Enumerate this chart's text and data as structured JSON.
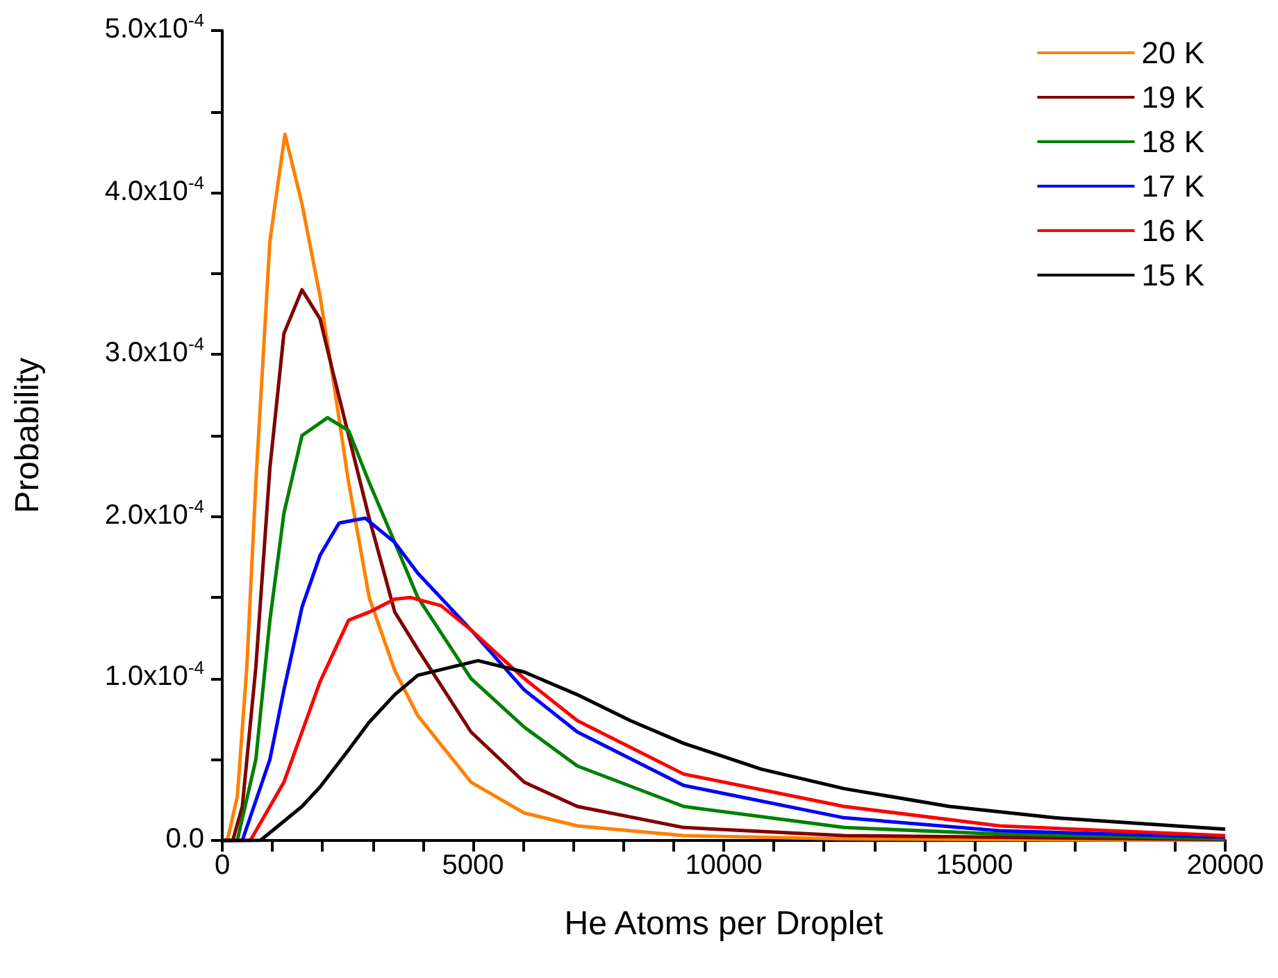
{
  "chart_data": {
    "type": "line",
    "xlabel": "He Atoms per Droplet",
    "ylabel": "Probability",
    "xlim": [
      0,
      20000
    ],
    "ylim": [
      0,
      0.0005
    ],
    "xticks": [
      0,
      {
        "value": 1000,
        "label": null
      },
      {
        "value": 2000,
        "label": null
      },
      {
        "value": 3000,
        "label": null
      },
      {
        "value": 4000,
        "label": null
      },
      5000,
      {
        "value": 6000,
        "label": null
      },
      {
        "value": 7000,
        "label": null
      },
      {
        "value": 8000,
        "label": null
      },
      {
        "value": 9000,
        "label": null
      },
      10000,
      {
        "value": 11000,
        "label": null
      },
      {
        "value": 12000,
        "label": null
      },
      {
        "value": 13000,
        "label": null
      },
      {
        "value": 14000,
        "label": null
      },
      15000,
      {
        "value": 16000,
        "label": null
      },
      {
        "value": 17000,
        "label": null
      },
      {
        "value": 18000,
        "label": null
      },
      {
        "value": 19000,
        "label": null
      },
      20000
    ],
    "yticks": [
      {
        "value": 0,
        "label": "0.0"
      },
      {
        "value": 5e-05,
        "label": null
      },
      {
        "value": 0.0001,
        "label": "1.0x10$^{-4}$"
      },
      {
        "value": 0.00015,
        "label": null
      },
      {
        "value": 0.0002,
        "label": "2.0x10$^{-4}$"
      },
      {
        "value": 0.00025,
        "label": null
      },
      {
        "value": 0.0003,
        "label": "3.0x10$^{-4}$"
      },
      {
        "value": 0.00035,
        "label": null
      },
      {
        "value": 0.0004,
        "label": "4.0x10$^{-4}$"
      },
      {
        "value": 0.00045,
        "label": null
      },
      {
        "value": 0.0005,
        "label": "5.0x10$^{-4}$"
      }
    ],
    "grid": false,
    "legend": "top right",
    "marker": "none",
    "series": [
      {
        "name": "20 K",
        "color": "#ff8000",
        "x": [
          0,
          100,
          300,
          490,
          670,
          950,
          1250,
          1590,
          1950,
          2200,
          2520,
          2930,
          3440,
          3900,
          4960,
          6020,
          7080,
          9200,
          12400,
          20000
        ],
        "values": [
          0,
          0,
          2.7e-05,
          0.000107,
          0.000221,
          0.00037,
          0.000436,
          0.000393,
          0.000336,
          0.000287,
          0.000221,
          0.00015,
          0.000105,
          7.7e-05,
          3.6e-05,
          1.7e-05,
          9e-06,
          3e-06,
          1e-06,
          0
        ]
      },
      {
        "name": "19 K",
        "color": "#800000",
        "x": [
          0,
          210,
          400,
          670,
          950,
          1230,
          1590,
          1950,
          2200,
          2520,
          2930,
          3440,
          3900,
          4960,
          6020,
          7080,
          9200,
          12400,
          20000
        ],
        "values": [
          0,
          0,
          2.1e-05,
          0.000107,
          0.00023,
          0.000313,
          0.00034,
          0.000322,
          0.00029,
          0.00025,
          0.000199,
          0.000141,
          0.000118,
          6.7e-05,
          3.6e-05,
          2.1e-05,
          8e-06,
          3e-06,
          5e-07
        ]
      },
      {
        "name": "18 K",
        "color": "#008000",
        "x": [
          0,
          300,
          670,
          950,
          1230,
          1590,
          2100,
          2520,
          2930,
          3440,
          3900,
          4960,
          6020,
          7080,
          9200,
          12400,
          15500,
          20000
        ],
        "values": [
          0,
          0,
          5e-05,
          0.000136,
          0.000202,
          0.00025,
          0.000261,
          0.000253,
          0.000221,
          0.000184,
          0.00015,
          0.0001,
          7e-05,
          4.6e-05,
          2.1e-05,
          8e-06,
          4e-06,
          1e-06
        ]
      },
      {
        "name": "17 K",
        "color": "#0000ff",
        "x": [
          0,
          400,
          950,
          1230,
          1590,
          1950,
          2330,
          2850,
          3440,
          3900,
          4960,
          6020,
          7080,
          9200,
          12400,
          15500,
          20000
        ],
        "values": [
          0,
          0,
          5e-05,
          9.3e-05,
          0.000144,
          0.000176,
          0.000196,
          0.000199,
          0.000184,
          0.000165,
          0.00013,
          9.3e-05,
          6.7e-05,
          3.4e-05,
          1.4e-05,
          6e-06,
          2e-06
        ]
      },
      {
        "name": "16 K",
        "color": "#ff0000",
        "x": [
          0,
          560,
          1230,
          1590,
          1950,
          2520,
          2930,
          3440,
          3750,
          4360,
          4960,
          6020,
          7080,
          9200,
          12400,
          15500,
          20000
        ],
        "values": [
          0,
          0,
          3.6e-05,
          6.7e-05,
          9.8e-05,
          0.000136,
          0.000141,
          0.000149,
          0.00015,
          0.000145,
          0.00013,
          0.0001,
          7.4e-05,
          4.1e-05,
          2.1e-05,
          9e-06,
          3e-06
        ]
      },
      {
        "name": "15 K",
        "color": "#000000",
        "x": [
          0,
          760,
          1590,
          1950,
          2520,
          2930,
          3440,
          3900,
          5100,
          6020,
          7080,
          8140,
          9200,
          10750,
          12400,
          14500,
          16600,
          20000
        ],
        "values": [
          0,
          0,
          2.1e-05,
          3.3e-05,
          5.6e-05,
          7.3e-05,
          9e-05,
          0.000102,
          0.000111,
          0.000104,
          9e-05,
          7.4e-05,
          6e-05,
          4.4e-05,
          3.2e-05,
          2.1e-05,
          1.4e-05,
          7e-06
        ]
      }
    ]
  }
}
